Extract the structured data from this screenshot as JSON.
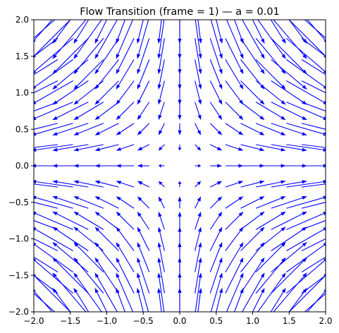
{
  "chart_data": {
    "type": "quiver",
    "title": "Flow Transition (frame = 1) — a = 0.01",
    "xlabel": "",
    "ylabel": "",
    "xlim": [
      -2.0,
      2.0
    ],
    "ylim": [
      -2.0,
      2.0
    ],
    "grid": false,
    "legend": false,
    "x_ticks": [
      -2.0,
      -1.5,
      -1.0,
      -0.5,
      0.0,
      0.5,
      1.0,
      1.5,
      2.0
    ],
    "x_tick_labels": [
      "−2.0",
      "−1.5",
      "−1.0",
      "−0.5",
      "0.0",
      "0.5",
      "1.0",
      "1.5",
      "2.0"
    ],
    "y_ticks": [
      -2.0,
      -1.5,
      -1.0,
      -0.5,
      0.0,
      0.5,
      1.0,
      1.5,
      2.0
    ],
    "y_tick_labels": [
      "−2.0",
      "−1.5",
      "−1.0",
      "−0.5",
      "0.0",
      "0.5",
      "1.0",
      "1.5",
      "2.0"
    ],
    "vector_field": {
      "u_expression": "x",
      "v_expression": "-y",
      "grid_x": [
        -2.0,
        -1.75,
        -1.5,
        -1.25,
        -1.0,
        -0.75,
        -0.5,
        -0.25,
        0.0,
        0.25,
        0.5,
        0.75,
        1.0,
        1.25,
        1.5,
        1.75,
        2.0
      ],
      "grid_y": [
        -2.0,
        -1.75,
        -1.5,
        -1.25,
        -1.0,
        -0.75,
        -0.5,
        -0.25,
        0.0,
        0.25,
        0.5,
        0.75,
        1.0,
        1.25,
        1.5,
        1.75,
        2.0
      ],
      "color": "#0000ff"
    }
  }
}
